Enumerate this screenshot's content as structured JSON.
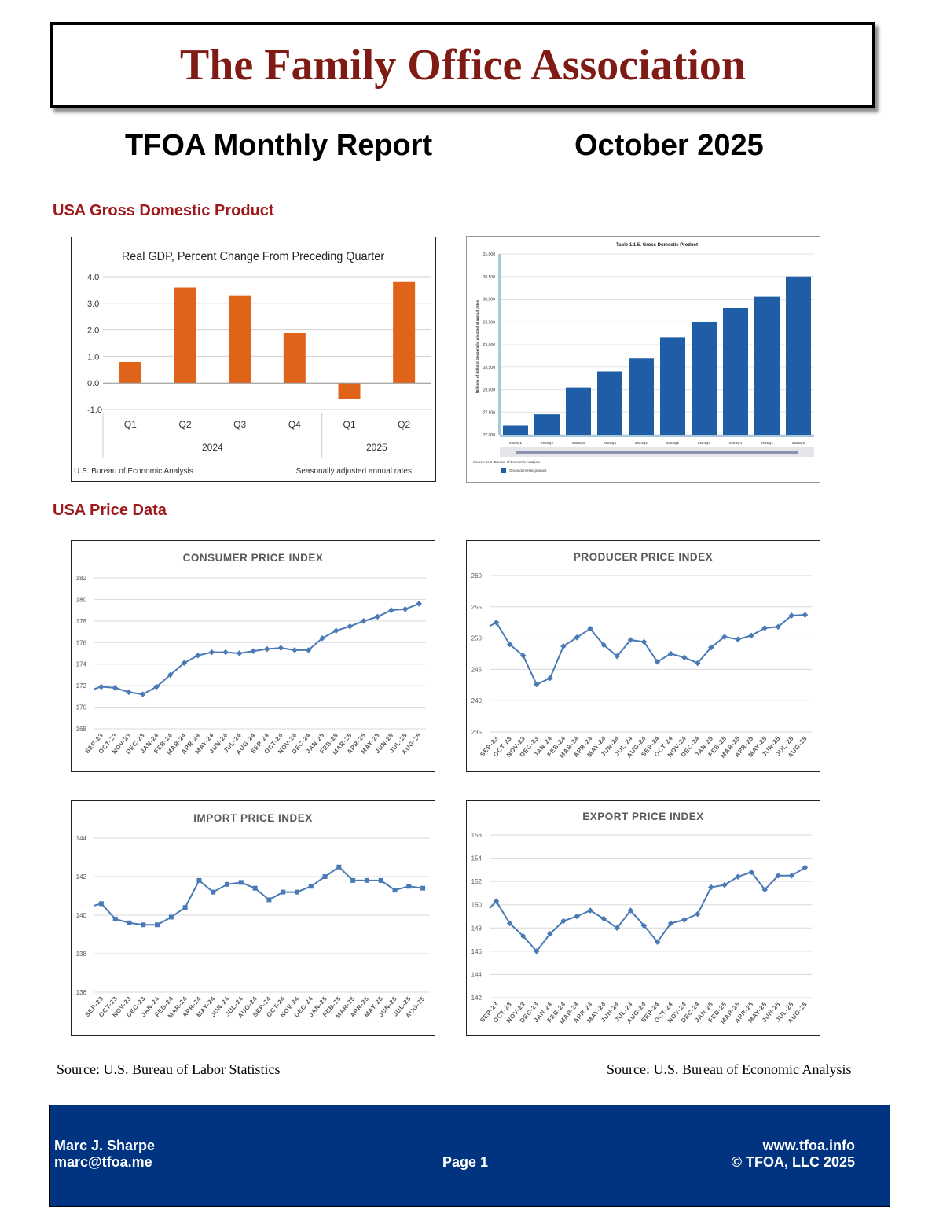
{
  "header": {
    "banner_title": "The Family Office Association",
    "report_title": "TFOA Monthly Report",
    "report_date": "October 2025"
  },
  "sections": {
    "gdp": "USA Gross Domestic Product",
    "prices": "USA Price Data"
  },
  "colors": {
    "banner_title": "#7f1a14",
    "section_heading": "#a0191a",
    "gdp_bar": "#e0631a",
    "gdp_level_bar": "#1f5ea6",
    "line_series": "#4a7ab5",
    "footer_bg": "#003380"
  },
  "sources": {
    "left": "Source: U.S. Bureau of Labor Statistics",
    "right": "Source: U.S. Bureau of Economic Analysis"
  },
  "footer": {
    "name": "Marc J. Sharpe",
    "email": "marc@tfoa.me",
    "page": "Page 1",
    "website": "www.tfoa.info",
    "copyright": "© TFOA, LLC 2025"
  },
  "chart_data": [
    {
      "id": "gdp_pct",
      "type": "bar",
      "title": "Real GDP, Percent Change From Preceding Quarter",
      "categories": [
        "Q1",
        "Q2",
        "Q3",
        "Q4",
        "Q1",
        "Q2"
      ],
      "groups": [
        {
          "label": "2024",
          "count": 4
        },
        {
          "label": "2025",
          "count": 2
        }
      ],
      "values": [
        0.8,
        3.6,
        3.3,
        1.9,
        -0.6,
        3.8
      ],
      "ylim": [
        -1.0,
        4.0
      ],
      "yticks": [
        "4.0",
        "3.0",
        "2.0",
        "1.0",
        "0.0",
        "-1.0"
      ],
      "grid": true,
      "note_left": "U.S. Bureau of Economic Analysis",
      "note_right": "Seasonally adjusted annual rates"
    },
    {
      "id": "gdp_level",
      "type": "bar",
      "title": "Table 1.1.5. Gross Domestic Product",
      "ylabel": "[Billions of dollars] Seasonally adjusted at annual rates",
      "categories": [
        "2023Q1",
        "2023Q2",
        "2023Q3",
        "2023Q4",
        "2024Q1",
        "2024Q2",
        "2024Q3",
        "2024Q4",
        "2025Q1",
        "2025Q2"
      ],
      "values": [
        27200,
        27450,
        28050,
        28400,
        28700,
        29150,
        29500,
        29800,
        30050,
        30500
      ],
      "ylim": [
        27000,
        31000
      ],
      "yticks": [
        "31,000",
        "30,500",
        "30,000",
        "29,500",
        "29,000",
        "28,500",
        "28,000",
        "27,500",
        "27,000"
      ],
      "grid": true,
      "source": "Source: U.S. Bureau of Economic Analysis",
      "legend": "Gross domestic product"
    },
    {
      "id": "cpi",
      "type": "line",
      "title": "CONSUMER PRICE INDEX",
      "categories": [
        "SEP-23",
        "OCT-23",
        "NOV-23",
        "DEC-23",
        "JAN-24",
        "FEB-24",
        "MAR-24",
        "APR-24",
        "MAY-24",
        "JUN-24",
        "JUL-24",
        "AUG-24",
        "SEP-24",
        "OCT-24",
        "NOV-24",
        "DEC-24",
        "JAN-25",
        "FEB-25",
        "MAR-25",
        "APR-25",
        "MAY-25",
        "JUN-25",
        "JUL-25",
        "AUG-25"
      ],
      "values": [
        171.9,
        171.8,
        171.4,
        171.2,
        171.9,
        173.0,
        174.1,
        174.8,
        175.1,
        175.1,
        175.0,
        175.2,
        175.4,
        175.5,
        175.3,
        175.3,
        176.4,
        177.1,
        177.5,
        178.0,
        178.4,
        179.0,
        179.1,
        179.6
      ],
      "start_value": 171.7,
      "ylim": [
        168,
        182
      ],
      "yticks": [
        "182",
        "180",
        "178",
        "176",
        "174",
        "172",
        "170",
        "168"
      ],
      "marker": "diamond",
      "grid": true
    },
    {
      "id": "ppi",
      "type": "line",
      "title": "PRODUCER PRICE INDEX",
      "categories": [
        "SEP-23",
        "OCT-23",
        "NOV-23",
        "DEC-23",
        "JAN-24",
        "FEB-24",
        "MAR-24",
        "APR-24",
        "MAY-24",
        "JUN-24",
        "JUL-24",
        "AUG-24",
        "SEP-24",
        "OCT-24",
        "NOV-24",
        "DEC-24",
        "JAN-25",
        "FEB-25",
        "MAR-25",
        "APR-25",
        "MAY-25",
        "JUN-25",
        "JUL-25",
        "AUG-25"
      ],
      "values": [
        252.5,
        249.0,
        247.2,
        242.6,
        243.6,
        248.7,
        250.1,
        251.5,
        248.9,
        247.1,
        249.7,
        249.4,
        246.2,
        247.5,
        246.9,
        246.0,
        248.5,
        250.2,
        249.8,
        250.4,
        251.6,
        251.8,
        253.6,
        253.7
      ],
      "start_value": 251.9,
      "ylim": [
        235,
        260
      ],
      "yticks": [
        "260",
        "255",
        "250",
        "245",
        "240",
        "235"
      ],
      "marker": "diamond",
      "grid": true
    },
    {
      "id": "import",
      "type": "line",
      "title": "IMPORT PRICE INDEX",
      "categories": [
        "SEP-23",
        "OCT-23",
        "NOV-23",
        "DEC-23",
        "JAN-24",
        "FEB-24",
        "MAR-24",
        "APR-24",
        "MAY-24",
        "JUN-24",
        "JUL-24",
        "AUG-24",
        "SEP-24",
        "OCT-24",
        "NOV-24",
        "DEC-24",
        "JAN-25",
        "FEB-25",
        "MAR-25",
        "APR-25",
        "MAY-25",
        "JUN-25",
        "JUL-25",
        "AUG-25"
      ],
      "values": [
        140.6,
        139.8,
        139.6,
        139.5,
        139.5,
        139.9,
        140.4,
        141.8,
        141.2,
        141.6,
        141.7,
        141.4,
        140.8,
        141.2,
        141.2,
        141.5,
        142.0,
        142.5,
        141.8,
        141.8,
        141.8,
        141.3,
        141.5,
        141.4
      ],
      "start_value": 140.5,
      "ylim": [
        136,
        144
      ],
      "yticks": [
        "144",
        "142",
        "140",
        "138",
        "136"
      ],
      "marker": "square",
      "grid": true
    },
    {
      "id": "export",
      "type": "line",
      "title": "EXPORT PRICE INDEX",
      "categories": [
        "SEP-23",
        "OCT-23",
        "NOV-23",
        "DEC-23",
        "JAN-24",
        "FEB-24",
        "MAR-24",
        "APR-24",
        "MAY-24",
        "JUN-24",
        "JUL-24",
        "AUG-24",
        "SEP-24",
        "OCT-24",
        "NOV-24",
        "DEC-24",
        "JAN-25",
        "FEB-25",
        "MAR-25",
        "APR-25",
        "MAY-25",
        "JUN-25",
        "JUL-25",
        "AUG-25"
      ],
      "values": [
        150.3,
        148.4,
        147.3,
        146.0,
        147.5,
        148.6,
        149.0,
        149.5,
        148.8,
        148.0,
        149.5,
        148.2,
        146.8,
        148.4,
        148.7,
        149.2,
        151.5,
        151.7,
        152.4,
        152.8,
        151.3,
        152.5,
        152.5,
        153.2
      ],
      "start_value": 149.7,
      "ylim": [
        142,
        156
      ],
      "yticks": [
        "156",
        "154",
        "152",
        "150",
        "148",
        "146",
        "144",
        "142"
      ],
      "marker": "diamond",
      "grid": true
    }
  ]
}
